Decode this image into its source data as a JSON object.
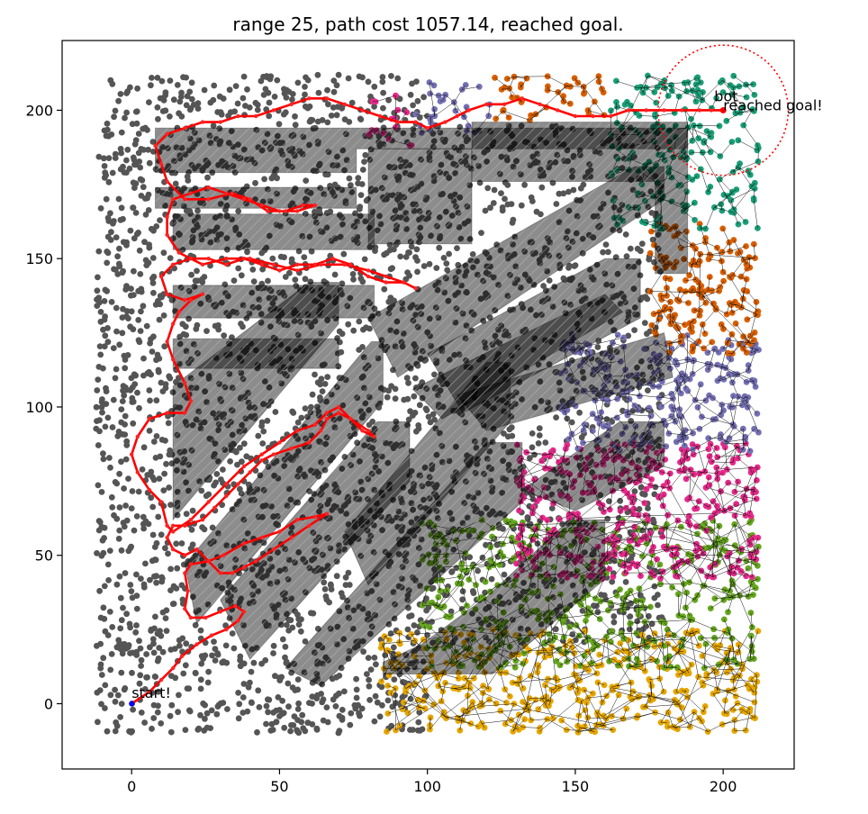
{
  "chart_data": {
    "type": "scatter",
    "title": "range 25, path cost 1057.14, reached goal.",
    "xlabel": "",
    "ylabel": "",
    "xlim": [
      -23.5,
      224
    ],
    "ylim": [
      -22,
      223.5
    ],
    "xticks": [
      0,
      50,
      100,
      150,
      200
    ],
    "yticks": [
      0,
      50,
      100,
      150,
      200
    ],
    "grid": false,
    "legend": "none",
    "start": {
      "x": 0,
      "y": 0
    },
    "goal": {
      "x": 200,
      "y": 200
    },
    "goal_radius": 22,
    "annotations": [
      {
        "text": "start!",
        "x": 0,
        "y": 2
      },
      {
        "text": "bot",
        "x": 197,
        "y": 203
      },
      {
        "text": "reached goal!",
        "x": 200,
        "y": 200
      }
    ],
    "obstacles": [
      {
        "points": [
          [
            8,
            194
          ],
          [
            188,
            194
          ],
          [
            188,
            187
          ],
          [
            76,
            187
          ],
          [
            76,
            179
          ],
          [
            8,
            179
          ]
        ]
      },
      {
        "points": [
          [
            8,
            174
          ],
          [
            76,
            174
          ],
          [
            76,
            167
          ],
          [
            8,
            167
          ]
        ]
      },
      {
        "points": [
          [
            14,
            165
          ],
          [
            82,
            165
          ],
          [
            82,
            153
          ],
          [
            14,
            153
          ]
        ]
      },
      {
        "points": [
          [
            14,
            141
          ],
          [
            82,
            141
          ],
          [
            82,
            130
          ],
          [
            14,
            130
          ]
        ]
      },
      {
        "points": [
          [
            14,
            123
          ],
          [
            70,
            123
          ],
          [
            70,
            113
          ],
          [
            14,
            113
          ]
        ]
      },
      {
        "points": [
          [
            80,
            187
          ],
          [
            115,
            187
          ],
          [
            115,
            155
          ],
          [
            80,
            155
          ]
        ]
      },
      {
        "points": [
          [
            115,
            196
          ],
          [
            188,
            196
          ],
          [
            188,
            145
          ],
          [
            177,
            145
          ],
          [
            177,
            176
          ],
          [
            115,
            176
          ]
        ]
      },
      {
        "points": [
          [
            14,
            107
          ],
          [
            60,
            142
          ],
          [
            70,
            142
          ],
          [
            70,
            128
          ],
          [
            14,
            62
          ]
        ]
      },
      {
        "points": [
          [
            18,
            47
          ],
          [
            81,
            122
          ],
          [
            85,
            122
          ],
          [
            85,
            102
          ],
          [
            22,
            27
          ]
        ]
      },
      {
        "points": [
          [
            30,
            35
          ],
          [
            83,
            95
          ],
          [
            94,
            95
          ],
          [
            94,
            75
          ],
          [
            40,
            15
          ]
        ]
      },
      {
        "points": [
          [
            52,
            12
          ],
          [
            120,
            88
          ],
          [
            132,
            88
          ],
          [
            132,
            68
          ],
          [
            64,
            6
          ]
        ]
      },
      {
        "points": [
          [
            72,
            58
          ],
          [
            120,
            115
          ],
          [
            128,
            115
          ],
          [
            128,
            95
          ],
          [
            80,
            40
          ]
        ]
      },
      {
        "points": [
          [
            80,
            130
          ],
          [
            170,
            181
          ],
          [
            180,
            181
          ],
          [
            180,
            170
          ],
          [
            90,
            110
          ]
        ]
      },
      {
        "points": [
          [
            100,
            118
          ],
          [
            160,
            150
          ],
          [
            172,
            150
          ],
          [
            172,
            130
          ],
          [
            112,
            98
          ]
        ]
      },
      {
        "points": [
          [
            95,
            106
          ],
          [
            160,
            138
          ],
          [
            166,
            132
          ],
          [
            105,
            96
          ]
        ]
      },
      {
        "points": [
          [
            110,
            104
          ],
          [
            180,
            125
          ],
          [
            183,
            110
          ],
          [
            120,
            92
          ]
        ]
      },
      {
        "points": [
          [
            132,
            72
          ],
          [
            165,
            95
          ],
          [
            180,
            95
          ],
          [
            180,
            80
          ],
          [
            150,
            65
          ]
        ]
      },
      {
        "points": [
          [
            85,
            10
          ],
          [
            122,
            10
          ],
          [
            160,
            42
          ],
          [
            160,
            62
          ],
          [
            148,
            62
          ],
          [
            120,
            36
          ],
          [
            98,
            20
          ],
          [
            85,
            14
          ]
        ]
      }
    ],
    "regions": [
      {
        "color": "#555555",
        "x0": -12,
        "x1": 100,
        "y0": -10,
        "y1": 212,
        "n": 2300
      },
      {
        "color": "#555555",
        "x0": 100,
        "x1": 180,
        "y0": 20,
        "y1": 195,
        "n": 1100
      },
      {
        "color": "#e6a600",
        "x0": 84,
        "x1": 212,
        "y0": -10,
        "y1": 25,
        "n": 420
      },
      {
        "color": "#66a61e",
        "x0": 98,
        "x1": 212,
        "y0": 12,
        "y1": 62,
        "n": 430
      },
      {
        "color": "#e7298a",
        "x0": 130,
        "x1": 212,
        "y0": 42,
        "y1": 88,
        "n": 380
      },
      {
        "color": "#7570b3",
        "x0": 145,
        "x1": 212,
        "y0": 85,
        "y1": 125,
        "n": 260
      },
      {
        "color": "#d95f02",
        "x0": 175,
        "x1": 212,
        "y0": 118,
        "y1": 162,
        "n": 170
      },
      {
        "color": "#1b9e77",
        "x0": 162,
        "x1": 212,
        "y0": 160,
        "y1": 212,
        "n": 200
      },
      {
        "color": "#d95f02",
        "x0": 122,
        "x1": 162,
        "y0": 196,
        "y1": 212,
        "n": 45
      },
      {
        "color": "#7570b3",
        "x0": 95,
        "x1": 122,
        "y0": 192,
        "y1": 212,
        "n": 28
      },
      {
        "color": "#e7298a",
        "x0": 80,
        "x1": 95,
        "y0": 188,
        "y1": 206,
        "n": 16
      }
    ],
    "path": [
      [
        0,
        0
      ],
      [
        6,
        4
      ],
      [
        10,
        8
      ],
      [
        14,
        12
      ],
      [
        17,
        16
      ],
      [
        22,
        20
      ],
      [
        27,
        23
      ],
      [
        32,
        25
      ],
      [
        36,
        28
      ],
      [
        38,
        31
      ],
      [
        35,
        33
      ],
      [
        30,
        31
      ],
      [
        25,
        29
      ],
      [
        20,
        29
      ],
      [
        18,
        32
      ],
      [
        19,
        38
      ],
      [
        18,
        44
      ],
      [
        20,
        47
      ],
      [
        26,
        48
      ],
      [
        31,
        50
      ],
      [
        38,
        54
      ],
      [
        44,
        56
      ],
      [
        50,
        58
      ],
      [
        56,
        62
      ],
      [
        62,
        63
      ],
      [
        66,
        64
      ],
      [
        60,
        60
      ],
      [
        54,
        56
      ],
      [
        48,
        52
      ],
      [
        42,
        48
      ],
      [
        38,
        46
      ],
      [
        34,
        44
      ],
      [
        30,
        44
      ],
      [
        26,
        48
      ],
      [
        22,
        52
      ],
      [
        18,
        50
      ],
      [
        14,
        52
      ],
      [
        12,
        56
      ],
      [
        14,
        60
      ],
      [
        18,
        60
      ],
      [
        24,
        62
      ],
      [
        28,
        66
      ],
      [
        32,
        70
      ],
      [
        36,
        74
      ],
      [
        40,
        78
      ],
      [
        44,
        82
      ],
      [
        48,
        84
      ],
      [
        54,
        86
      ],
      [
        60,
        88
      ],
      [
        64,
        92
      ],
      [
        66,
        96
      ],
      [
        70,
        98
      ],
      [
        74,
        96
      ],
      [
        78,
        92
      ],
      [
        82,
        90
      ],
      [
        80,
        92
      ],
      [
        74,
        96
      ],
      [
        70,
        100
      ],
      [
        66,
        98
      ],
      [
        62,
        94
      ],
      [
        56,
        92
      ],
      [
        50,
        88
      ],
      [
        44,
        84
      ],
      [
        38,
        80
      ],
      [
        32,
        74
      ],
      [
        26,
        68
      ],
      [
        20,
        62
      ],
      [
        14,
        58
      ],
      [
        12,
        60
      ],
      [
        10,
        68
      ],
      [
        6,
        72
      ],
      [
        2,
        78
      ],
      [
        0,
        84
      ],
      [
        2,
        90
      ],
      [
        6,
        96
      ],
      [
        12,
        98
      ],
      [
        18,
        98
      ],
      [
        20,
        102
      ],
      [
        18,
        108
      ],
      [
        14,
        116
      ],
      [
        12,
        122
      ],
      [
        14,
        128
      ],
      [
        16,
        132
      ],
      [
        20,
        136
      ],
      [
        24,
        138
      ],
      [
        18,
        136
      ],
      [
        12,
        138
      ],
      [
        10,
        144
      ],
      [
        14,
        148
      ],
      [
        20,
        150
      ],
      [
        26,
        150
      ],
      [
        32,
        148
      ],
      [
        38,
        150
      ],
      [
        44,
        148
      ],
      [
        50,
        146
      ],
      [
        56,
        148
      ],
      [
        62,
        148
      ],
      [
        68,
        150
      ],
      [
        74,
        148
      ],
      [
        80,
        144
      ],
      [
        86,
        142
      ],
      [
        92,
        142
      ],
      [
        96,
        140
      ],
      [
        92,
        142
      ],
      [
        86,
        144
      ],
      [
        80,
        146
      ],
      [
        72,
        148
      ],
      [
        64,
        148
      ],
      [
        56,
        146
      ],
      [
        48,
        148
      ],
      [
        40,
        150
      ],
      [
        32,
        150
      ],
      [
        24,
        148
      ],
      [
        16,
        152
      ],
      [
        12,
        158
      ],
      [
        12,
        164
      ],
      [
        14,
        170
      ],
      [
        20,
        172
      ],
      [
        26,
        174
      ],
      [
        32,
        172
      ],
      [
        38,
        170
      ],
      [
        44,
        168
      ],
      [
        50,
        166
      ],
      [
        56,
        166
      ],
      [
        62,
        168
      ],
      [
        58,
        168
      ],
      [
        52,
        166
      ],
      [
        46,
        166
      ],
      [
        40,
        170
      ],
      [
        34,
        172
      ],
      [
        26,
        170
      ],
      [
        18,
        170
      ],
      [
        12,
        176
      ],
      [
        10,
        182
      ],
      [
        8,
        188
      ],
      [
        12,
        192
      ],
      [
        18,
        194
      ],
      [
        24,
        196
      ],
      [
        30,
        196
      ],
      [
        36,
        198
      ],
      [
        42,
        198
      ],
      [
        48,
        200
      ],
      [
        54,
        202
      ],
      [
        60,
        204
      ],
      [
        66,
        204
      ],
      [
        72,
        202
      ],
      [
        78,
        200
      ],
      [
        84,
        198
      ],
      [
        90,
        196
      ],
      [
        96,
        196
      ],
      [
        100,
        194
      ],
      [
        106,
        196
      ],
      [
        110,
        198
      ],
      [
        114,
        200
      ],
      [
        120,
        202
      ],
      [
        126,
        202
      ],
      [
        132,
        204
      ],
      [
        138,
        202
      ],
      [
        144,
        200
      ],
      [
        150,
        198
      ],
      [
        156,
        198
      ],
      [
        162,
        198
      ],
      [
        168,
        200
      ],
      [
        174,
        200
      ],
      [
        180,
        200
      ],
      [
        186,
        200
      ],
      [
        192,
        200
      ],
      [
        196,
        200
      ],
      [
        200,
        200
      ]
    ]
  }
}
